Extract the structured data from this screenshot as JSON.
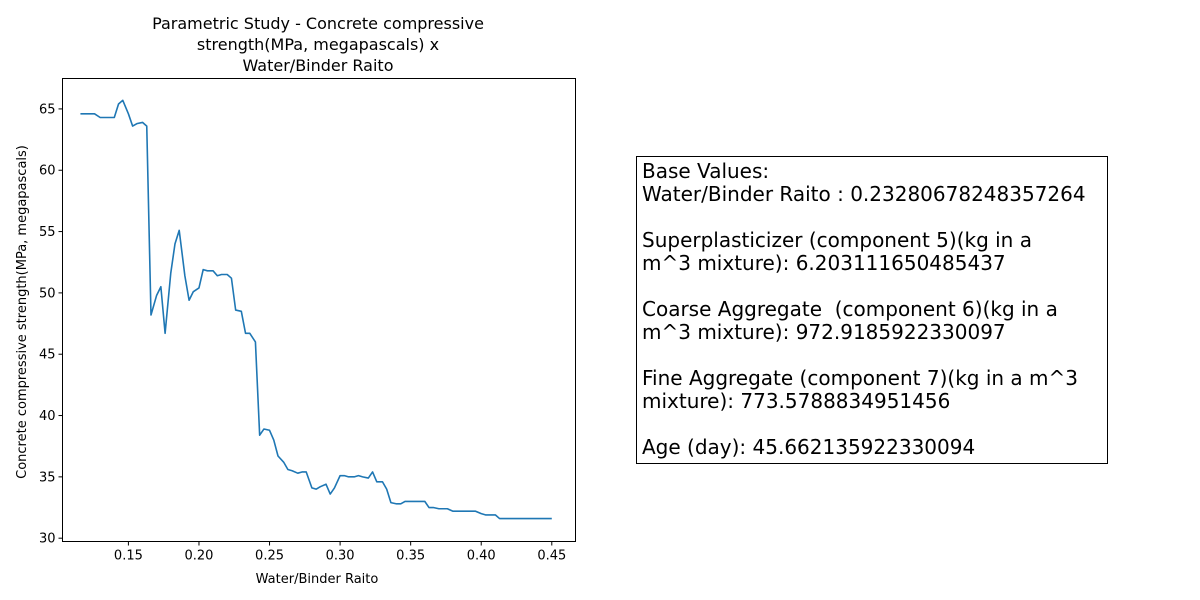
{
  "chart_data": {
    "type": "line",
    "title_lines": [
      "Parametric Study - Concrete compressive",
      "strength(MPa, megapascals)  x",
      "Water/Binder Raito"
    ],
    "xlabel": "Water/Binder Raito",
    "ylabel": "Concrete compressive strength(MPa, megapascals)",
    "xlim": [
      0.1033,
      0.4668
    ],
    "ylim": [
      29.73,
      67.48
    ],
    "xticks": [
      0.15,
      0.2,
      0.25,
      0.3,
      0.35,
      0.4,
      0.45
    ],
    "xtick_labels": [
      "0.15",
      "0.20",
      "0.25",
      "0.30",
      "0.35",
      "0.40",
      "0.45"
    ],
    "yticks": [
      30,
      35,
      40,
      45,
      50,
      55,
      60,
      65
    ],
    "ytick_labels": [
      "30",
      "35",
      "40",
      "45",
      "50",
      "55",
      "60",
      "65"
    ],
    "grid": false,
    "series": [
      {
        "color": "#1f77b4",
        "x": [
          0.116,
          0.123,
          0.126,
          0.13,
          0.134,
          0.137,
          0.14,
          0.143,
          0.146,
          0.15,
          0.153,
          0.156,
          0.16,
          0.163,
          0.166,
          0.17,
          0.173,
          0.176,
          0.18,
          0.183,
          0.186,
          0.19,
          0.193,
          0.196,
          0.2,
          0.203,
          0.206,
          0.21,
          0.213,
          0.216,
          0.22,
          0.223,
          0.226,
          0.23,
          0.233,
          0.236,
          0.24,
          0.243,
          0.246,
          0.25,
          0.253,
          0.256,
          0.26,
          0.263,
          0.266,
          0.27,
          0.273,
          0.276,
          0.28,
          0.283,
          0.286,
          0.29,
          0.293,
          0.296,
          0.3,
          0.303,
          0.306,
          0.31,
          0.313,
          0.316,
          0.32,
          0.323,
          0.326,
          0.33,
          0.333,
          0.336,
          0.34,
          0.343,
          0.346,
          0.35,
          0.353,
          0.356,
          0.36,
          0.363,
          0.366,
          0.37,
          0.373,
          0.376,
          0.38,
          0.383,
          0.386,
          0.39,
          0.393,
          0.396,
          0.4,
          0.403,
          0.406,
          0.41,
          0.413,
          0.416,
          0.42,
          0.423,
          0.426,
          0.43,
          0.433,
          0.436,
          0.44,
          0.443,
          0.446,
          0.45
        ],
        "y": [
          64.6,
          64.6,
          64.6,
          64.3,
          64.3,
          64.3,
          64.3,
          65.4,
          65.7,
          64.6,
          63.6,
          63.8,
          63.9,
          63.6,
          48.2,
          49.8,
          50.5,
          46.7,
          51.6,
          54.0,
          55.1,
          51.4,
          49.4,
          50.1,
          50.4,
          51.9,
          51.8,
          51.8,
          51.4,
          51.5,
          51.5,
          51.2,
          48.6,
          48.5,
          46.7,
          46.7,
          46.0,
          38.4,
          38.9,
          38.8,
          38.0,
          36.7,
          36.2,
          35.6,
          35.5,
          35.3,
          35.4,
          35.4,
          34.1,
          34.0,
          34.2,
          34.4,
          33.6,
          34.1,
          35.1,
          35.1,
          35.0,
          35.0,
          35.1,
          35.0,
          34.9,
          35.4,
          34.6,
          34.6,
          34.0,
          32.9,
          32.8,
          32.8,
          33.0,
          33.0,
          33.0,
          33.0,
          33.0,
          32.5,
          32.5,
          32.4,
          32.4,
          32.4,
          32.2,
          32.2,
          32.2,
          32.2,
          32.2,
          32.2,
          32.0,
          31.9,
          31.9,
          31.9,
          31.6,
          31.6,
          31.6,
          31.6,
          31.6,
          31.6,
          31.6,
          31.6,
          31.6,
          31.6,
          31.6,
          31.6
        ]
      }
    ]
  },
  "info_box": {
    "lines": [
      "Base Values:",
      "Water/Binder Raito : 0.23280678248357264",
      "",
      "Superplasticizer (component 5)(kg in a",
      "m^3 mixture): 6.203111650485437",
      "",
      "Coarse Aggregate  (component 6)(kg in a",
      "m^3 mixture): 972.9185922330097",
      "",
      "Fine Aggregate (component 7)(kg in a m^3",
      "mixture): 773.5788834951456",
      "",
      "Age (day): 45.662135922330094"
    ]
  }
}
